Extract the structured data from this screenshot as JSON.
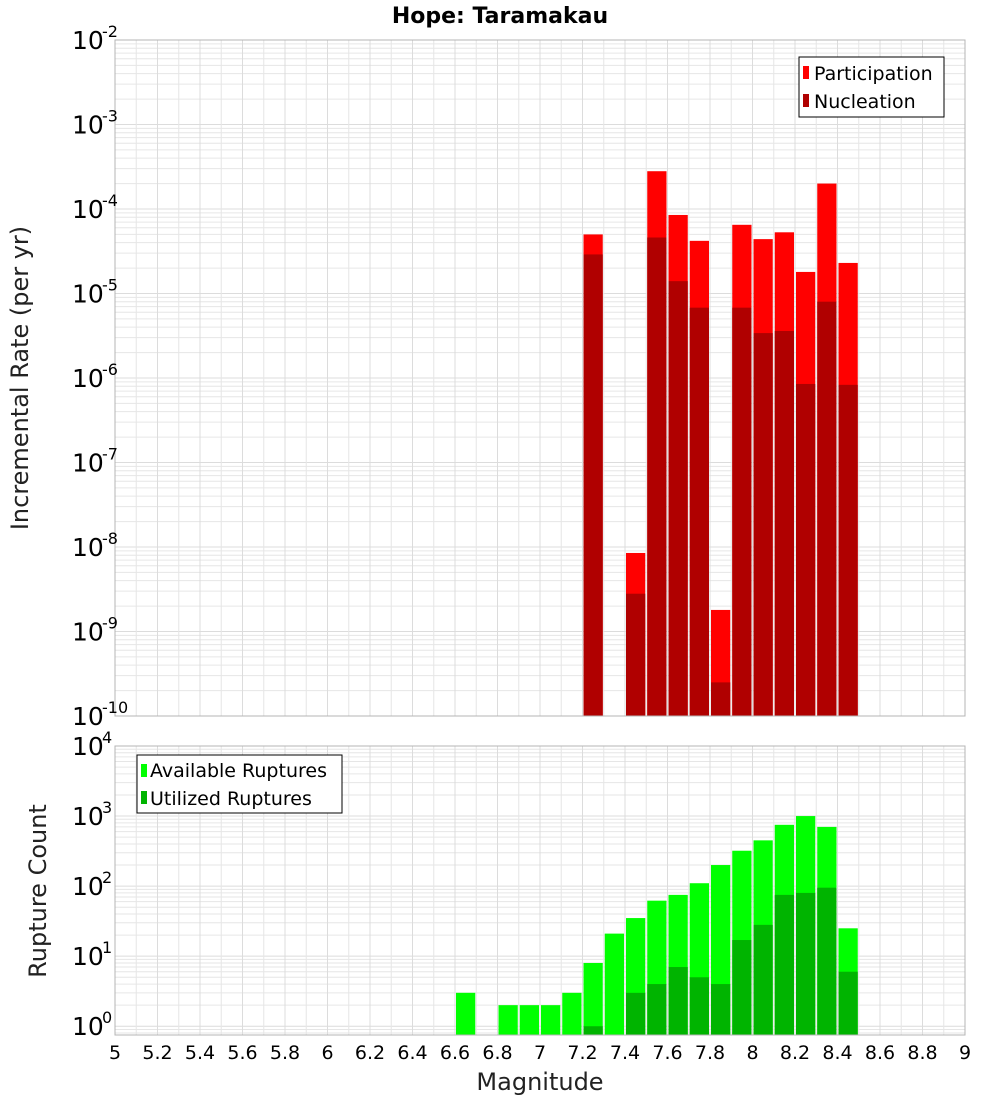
{
  "title": "Hope: Taramakau",
  "xlabel": "Magnitude",
  "colors": {
    "participation": "#ff0000",
    "nucleation": "#b00000",
    "available": "#00ff00",
    "utilized": "#00b400",
    "grid": "#e6e6e6",
    "frame": "#b4b4b4"
  },
  "x_ticks": [
    "5",
    "5.2",
    "5.4",
    "5.6",
    "5.8",
    "6",
    "6.2",
    "6.4",
    "6.6",
    "6.8",
    "7",
    "7.2",
    "7.4",
    "7.6",
    "7.8",
    "8",
    "8.2",
    "8.4",
    "8.6",
    "8.8",
    "9"
  ],
  "chart_data": [
    {
      "type": "bar",
      "title": "Hope: Taramakau",
      "xlabel": "Magnitude",
      "ylabel": "Incremental Rate (per yr)",
      "yscale": "log",
      "xlim": [
        5,
        9
      ],
      "ylim": [
        1e-10,
        0.01
      ],
      "y_tick_exponents": [
        "-10",
        "-9",
        "-8",
        "-7",
        "-6",
        "-5",
        "-4",
        "-3",
        "-2"
      ],
      "legend": [
        "Participation",
        "Nucleation"
      ],
      "legend_position": "top-right",
      "bin_width": 0.1,
      "x": [
        7.25,
        7.45,
        7.55,
        7.65,
        7.75,
        7.85,
        7.95,
        8.05,
        8.15,
        8.25,
        8.35,
        8.45
      ],
      "series": [
        {
          "name": "Participation",
          "values": [
            5e-05,
            8.5e-09,
            0.00028,
            8.5e-05,
            4.2e-05,
            1.8e-09,
            6.5e-05,
            4.4e-05,
            5.3e-05,
            1.8e-05,
            0.0002,
            2.3e-05
          ]
        },
        {
          "name": "Nucleation",
          "values": [
            2.9e-05,
            2.8e-09,
            4.6e-05,
            1.4e-05,
            6.8e-06,
            2.5e-10,
            6.8e-06,
            3.4e-06,
            3.6e-06,
            8.5e-07,
            8e-06,
            8.3e-07
          ]
        }
      ]
    },
    {
      "type": "bar",
      "ylabel": "Rupture Count",
      "xlabel": "Magnitude",
      "yscale": "log",
      "xlim": [
        5,
        9
      ],
      "ylim": [
        0.75,
        10000
      ],
      "y_tick_exponents": [
        "0",
        "1",
        "2",
        "3",
        "4"
      ],
      "legend": [
        "Available Ruptures",
        "Utilized Ruptures"
      ],
      "legend_position": "top-left",
      "bin_width": 0.1,
      "x": [
        6.65,
        6.85,
        6.95,
        7.05,
        7.15,
        7.25,
        7.35,
        7.45,
        7.55,
        7.65,
        7.75,
        7.85,
        7.95,
        8.05,
        8.15,
        8.25,
        8.35,
        8.45
      ],
      "series": [
        {
          "name": "Available Ruptures",
          "values": [
            3,
            2,
            2,
            2,
            3,
            8,
            21,
            35,
            62,
            75,
            110,
            200,
            320,
            450,
            750,
            1000,
            700,
            25
          ]
        },
        {
          "name": "Utilized Ruptures",
          "values": [
            0,
            0,
            0,
            0,
            0,
            1,
            0,
            3,
            4,
            7,
            5,
            4,
            17,
            28,
            75,
            80,
            95,
            6
          ]
        }
      ]
    }
  ]
}
